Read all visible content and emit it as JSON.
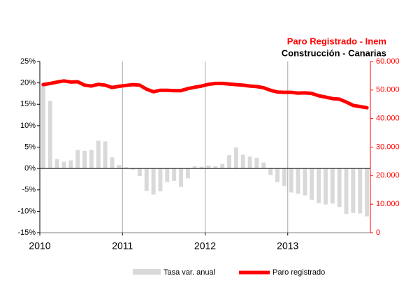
{
  "chart_data": {
    "type": "bar-line",
    "title": "Paro Registrado - Inem",
    "subtitle": "Construcción - Canarias",
    "categories": [
      "2010",
      null,
      null,
      null,
      null,
      null,
      null,
      null,
      null,
      null,
      null,
      null,
      "2011",
      null,
      null,
      null,
      null,
      null,
      null,
      null,
      null,
      null,
      null,
      null,
      "2012",
      null,
      null,
      null,
      null,
      null,
      null,
      null,
      null,
      null,
      null,
      null,
      "2013",
      null,
      null,
      null,
      null,
      null,
      null,
      null,
      null,
      null,
      null,
      null
    ],
    "series": [
      {
        "name": "Tasa var. anual",
        "type": "bar",
        "color": "#d9d9d9",
        "values": [
          20,
          15.8,
          2.2,
          1.6,
          1.9,
          4.3,
          4.1,
          4.3,
          6.5,
          6.3,
          2.6,
          0.8,
          0.3,
          -0.3,
          -1.8,
          -5.2,
          -6.1,
          -5.3,
          -3.2,
          -2.9,
          -4.3,
          -2.3,
          0.5,
          0.4,
          0.7,
          0.5,
          1.1,
          3.1,
          4.9,
          3.2,
          2.8,
          2.5,
          1.4,
          -1.5,
          -3.2,
          -4.1,
          -5.6,
          -5.9,
          -6.3,
          -7.3,
          -8.1,
          -8.4,
          -8.2,
          -9.0,
          -10.6,
          -10.4,
          -10.5,
          -11.2
        ]
      },
      {
        "name": "Paro registrado",
        "type": "line",
        "color": "#ff0000",
        "axis": "y2",
        "values": [
          51900,
          52300,
          52800,
          53200,
          52800,
          52900,
          51700,
          51400,
          52000,
          51700,
          50900,
          51300,
          51600,
          51900,
          51700,
          50300,
          49400,
          49900,
          49900,
          49800,
          49800,
          50500,
          51000,
          51400,
          52000,
          52300,
          52300,
          52100,
          51900,
          51700,
          51400,
          51200,
          50800,
          49900,
          49300,
          49200,
          49200,
          48900,
          49000,
          48800,
          48000,
          47500,
          47000,
          46800,
          45800,
          44600,
          44200,
          43800
        ]
      }
    ],
    "ylim": [
      -15,
      25
    ],
    "yticks": [
      {
        "value": -15,
        "label": "-15%"
      },
      {
        "value": -10,
        "label": "-10%"
      },
      {
        "value": -5,
        "label": "-5%"
      },
      {
        "value": 0,
        "label": "0%"
      },
      {
        "value": 5,
        "label": "5%"
      },
      {
        "value": 10,
        "label": "10%"
      },
      {
        "value": 15,
        "label": "15%"
      },
      {
        "value": 20,
        "label": "20%"
      },
      {
        "value": 25,
        "label": "25%"
      }
    ],
    "y2lim": [
      0,
      60000
    ],
    "y2ticks": [
      0,
      {
        "value": 10000,
        "label": "10.000"
      },
      {
        "value": 20000,
        "label": "20.000"
      },
      {
        "value": 30000,
        "label": "30.000"
      },
      {
        "value": 40000,
        "label": "40.000"
      },
      {
        "value": 50000,
        "label": "50.000"
      },
      {
        "value": 60000,
        "label": "60.000"
      }
    ],
    "y2color": "#ff0000"
  }
}
